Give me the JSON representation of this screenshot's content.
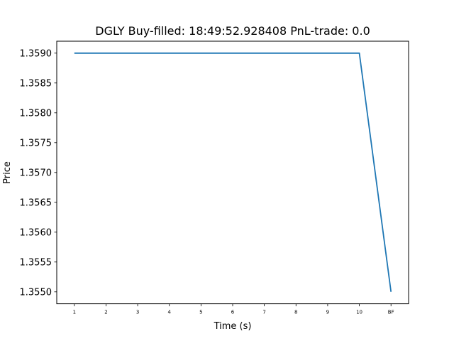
{
  "chart_data": {
    "type": "line",
    "title": "DGLY  Buy-filled:  18:49:52.928408  PnL-trade:  0.0",
    "xlabel": "Time (s)",
    "ylabel": "Price",
    "categories": [
      "1",
      "2",
      "3",
      "4",
      "5",
      "6",
      "7",
      "8",
      "9",
      "10",
      "BF"
    ],
    "series": [
      {
        "values": [
          1.359,
          1.359,
          1.359,
          1.359,
          1.359,
          1.359,
          1.359,
          1.359,
          1.359,
          1.359,
          1.355
        ],
        "color": "#1f77b4"
      }
    ],
    "yticks": [
      "1.3550",
      "1.3555",
      "1.3560",
      "1.3565",
      "1.3570",
      "1.3575",
      "1.3580",
      "1.3585",
      "1.3590"
    ],
    "ylim": [
      1.3548,
      1.3592
    ],
    "grid": false
  }
}
